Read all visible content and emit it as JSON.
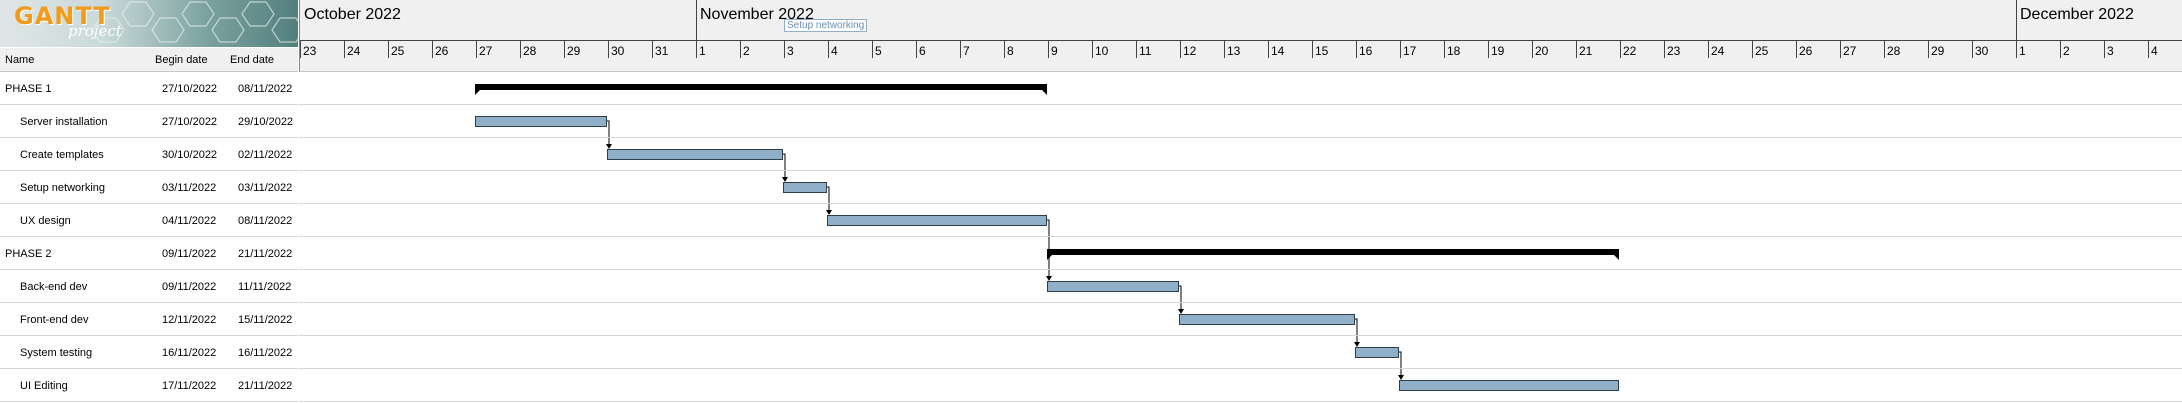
{
  "app": {
    "logo_title": "GANTT",
    "logo_subtitle": "project"
  },
  "columns": {
    "name": "Name",
    "begin": "Begin date",
    "end": "End date"
  },
  "months": [
    {
      "label": "October 2022",
      "start_day_index": 0
    },
    {
      "label": "November 2022",
      "start_day_index": 9
    },
    {
      "label": "December 2022",
      "start_day_index": 39
    }
  ],
  "days": [
    "23",
    "24",
    "25",
    "26",
    "27",
    "28",
    "29",
    "30",
    "31",
    "1",
    "2",
    "3",
    "4",
    "5",
    "6",
    "7",
    "8",
    "9",
    "10",
    "11",
    "12",
    "13",
    "14",
    "15",
    "16",
    "17",
    "18",
    "19",
    "20",
    "21",
    "22",
    "23",
    "24",
    "25",
    "26",
    "27",
    "28",
    "29",
    "30",
    "1",
    "2",
    "3",
    "4"
  ],
  "tooltip": "Setup networking",
  "tasks": [
    {
      "name": "PHASE 1",
      "begin": "27/10/2022",
      "end": "08/11/2022",
      "summary": true,
      "indent": false,
      "start_index": 4,
      "duration_days": 13
    },
    {
      "name": "Server installation",
      "begin": "27/10/2022",
      "end": "29/10/2022",
      "summary": false,
      "indent": true,
      "start_index": 4,
      "duration_days": 3
    },
    {
      "name": "Create templates",
      "begin": "30/10/2022",
      "end": "02/11/2022",
      "summary": false,
      "indent": true,
      "start_index": 7,
      "duration_days": 4
    },
    {
      "name": "Setup networking",
      "begin": "03/11/2022",
      "end": "03/11/2022",
      "summary": false,
      "indent": true,
      "start_index": 11,
      "duration_days": 1
    },
    {
      "name": "UX design",
      "begin": "04/11/2022",
      "end": "08/11/2022",
      "summary": false,
      "indent": true,
      "start_index": 12,
      "duration_days": 5
    },
    {
      "name": "PHASE 2",
      "begin": "09/11/2022",
      "end": "21/11/2022",
      "summary": true,
      "indent": false,
      "start_index": 17,
      "duration_days": 13
    },
    {
      "name": "Back-end dev",
      "begin": "09/11/2022",
      "end": "11/11/2022",
      "summary": false,
      "indent": true,
      "start_index": 17,
      "duration_days": 3
    },
    {
      "name": "Front-end dev",
      "begin": "12/11/2022",
      "end": "15/11/2022",
      "summary": false,
      "indent": true,
      "start_index": 20,
      "duration_days": 4
    },
    {
      "name": "System testing",
      "begin": "16/11/2022",
      "end": "16/11/2022",
      "summary": false,
      "indent": true,
      "start_index": 24,
      "duration_days": 1
    },
    {
      "name": "UI Editing",
      "begin": "17/11/2022",
      "end": "21/11/2022",
      "summary": false,
      "indent": true,
      "start_index": 25,
      "duration_days": 5
    }
  ],
  "dependencies": [
    [
      1,
      2
    ],
    [
      2,
      3
    ],
    [
      3,
      4
    ],
    [
      4,
      6
    ],
    [
      6,
      7
    ],
    [
      7,
      8
    ],
    [
      8,
      9
    ]
  ],
  "colors": {
    "bar_fill": "#8fb0c8",
    "bar_border": "#2d3d4a",
    "summary": "#000000",
    "logo_accent": "#f29a1a"
  }
}
